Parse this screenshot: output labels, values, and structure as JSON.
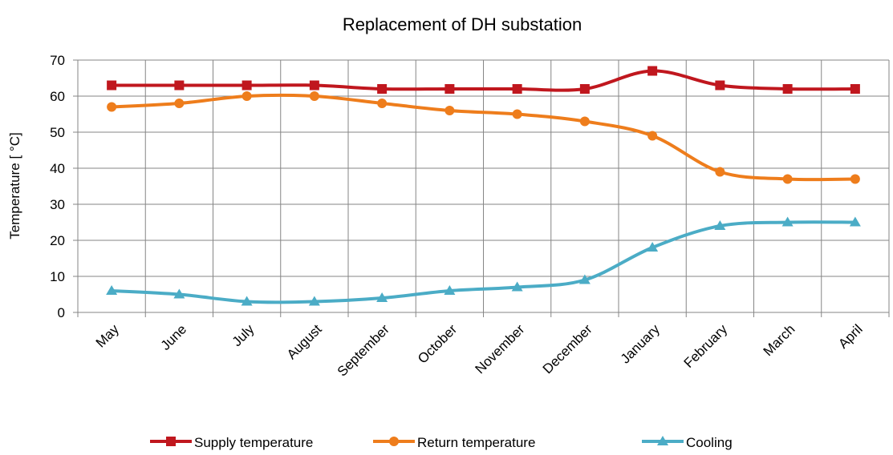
{
  "chart_data": {
    "type": "line",
    "title": "Replacement of DH substation",
    "y_label": "Temperature [ °C]",
    "categories": [
      "May",
      "June",
      "July",
      "August",
      "September",
      "October",
      "November",
      "December",
      "January",
      "February",
      "March",
      "April"
    ],
    "series": [
      {
        "name": "Supply temperature",
        "color": "#c0171e",
        "marker": "square",
        "values": [
          63,
          63,
          63,
          63,
          62,
          62,
          62,
          62,
          67,
          63,
          62,
          62
        ]
      },
      {
        "name": "Return temperature",
        "color": "#ee7d1c",
        "marker": "circle",
        "values": [
          57,
          58,
          60,
          60,
          58,
          56,
          55,
          53,
          49,
          39,
          37,
          37
        ]
      },
      {
        "name": "Cooling",
        "color": "#4bacc6",
        "marker": "triangle",
        "values": [
          6,
          5,
          3,
          3,
          4,
          6,
          7,
          9,
          18,
          24,
          25,
          25
        ]
      }
    ],
    "ylim": [
      0,
      70
    ],
    "yticks": [
      0,
      10,
      20,
      30,
      40,
      50,
      60,
      70
    ],
    "grid": true,
    "smooth": true,
    "legend": "bottom"
  }
}
